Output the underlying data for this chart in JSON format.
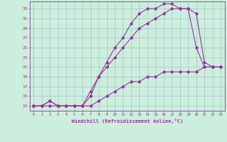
{
  "xlabel": "Windchill (Refroidissement éolien,°C)",
  "background_color": "#cceedd",
  "grid_color": "#aacccc",
  "line_color": "#993399",
  "x_ticks": [
    0,
    1,
    2,
    3,
    4,
    5,
    6,
    7,
    8,
    9,
    10,
    11,
    12,
    13,
    14,
    15,
    16,
    17,
    18,
    19,
    20,
    21,
    22,
    23
  ],
  "y_ticks": [
    13,
    15,
    17,
    19,
    21,
    23,
    25,
    27,
    29,
    31,
    33
  ],
  "xlim": [
    -0.5,
    23.5
  ],
  "ylim": [
    12.0,
    34.5
  ],
  "curve1_x": [
    0,
    1,
    2,
    3,
    4,
    5,
    6,
    7,
    8,
    9,
    10,
    11,
    12,
    13,
    14,
    15,
    16,
    17,
    18,
    19,
    20,
    21,
    22,
    23
  ],
  "curve1_y": [
    13,
    13,
    14,
    13,
    13,
    13,
    13,
    15,
    19,
    22,
    25,
    27,
    30,
    32,
    33,
    33,
    34,
    34,
    33,
    33,
    25,
    21,
    21,
    21
  ],
  "curve2_x": [
    0,
    1,
    2,
    3,
    4,
    5,
    6,
    7,
    8,
    9,
    10,
    11,
    12,
    13,
    14,
    15,
    16,
    17,
    18,
    19,
    20,
    21,
    22,
    23
  ],
  "curve2_y": [
    13,
    13,
    14,
    13,
    13,
    13,
    13,
    16,
    19,
    21,
    23,
    25,
    27,
    29,
    30,
    31,
    32,
    33,
    33,
    33,
    32,
    22,
    21,
    21
  ],
  "curve3_x": [
    0,
    1,
    2,
    3,
    4,
    5,
    6,
    7,
    8,
    9,
    10,
    11,
    12,
    13,
    14,
    15,
    16,
    17,
    18,
    19,
    20,
    21,
    22,
    23
  ],
  "curve3_y": [
    13,
    13,
    13,
    13,
    13,
    13,
    13,
    13,
    14,
    15,
    16,
    17,
    18,
    18,
    19,
    19,
    20,
    20,
    20,
    20,
    20,
    21,
    21,
    21
  ]
}
